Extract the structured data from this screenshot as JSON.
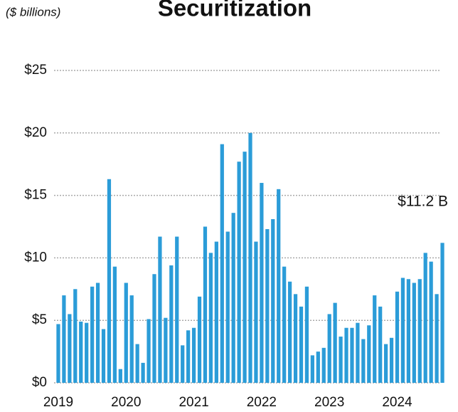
{
  "chart_data": {
    "type": "bar",
    "title": "Securitization",
    "subtitle": "($ billions)",
    "annotation": "$11.2 B",
    "categories": [
      "2019",
      null,
      null,
      null,
      null,
      null,
      null,
      null,
      null,
      null,
      null,
      null,
      "2020",
      null,
      null,
      null,
      null,
      null,
      null,
      null,
      null,
      null,
      null,
      null,
      "2021",
      null,
      null,
      null,
      null,
      null,
      null,
      null,
      null,
      null,
      null,
      null,
      "2022",
      null,
      null,
      null,
      null,
      null,
      null,
      null,
      null,
      null,
      null,
      null,
      "2023",
      null,
      null,
      null,
      null,
      null,
      null,
      null,
      null,
      null,
      null,
      null,
      "2024",
      null,
      null,
      null,
      null,
      null,
      null,
      null,
      null
    ],
    "values": [
      4.7,
      7.0,
      5.5,
      7.5,
      4.9,
      4.8,
      7.7,
      8.0,
      4.3,
      16.3,
      9.3,
      1.1,
      8.0,
      7.0,
      3.1,
      1.6,
      5.1,
      8.7,
      11.7,
      5.2,
      9.4,
      11.7,
      3.0,
      4.2,
      4.4,
      6.9,
      12.5,
      10.4,
      11.3,
      19.1,
      12.1,
      13.6,
      17.7,
      18.5,
      20.0,
      11.3,
      16.0,
      12.3,
      13.1,
      15.5,
      9.3,
      8.1,
      7.1,
      6.1,
      7.7,
      2.2,
      2.5,
      2.8,
      5.5,
      6.4,
      3.7,
      4.4,
      4.4,
      4.8,
      3.5,
      4.6,
      7.0,
      6.1,
      3.1,
      3.6,
      7.3,
      8.4,
      8.3,
      8.0,
      8.3,
      10.4,
      9.7,
      7.1,
      11.2
    ],
    "color": "#2b9cd8",
    "ylim": [
      0,
      25
    ],
    "yticks": [
      {
        "value": 0,
        "label": "$0"
      },
      {
        "value": 5,
        "label": "$5"
      },
      {
        "value": 10,
        "label": "$10"
      },
      {
        "value": 15,
        "label": "$15"
      },
      {
        "value": 20,
        "label": "$20"
      },
      {
        "value": 25,
        "label": "$25"
      }
    ],
    "grid": true
  }
}
